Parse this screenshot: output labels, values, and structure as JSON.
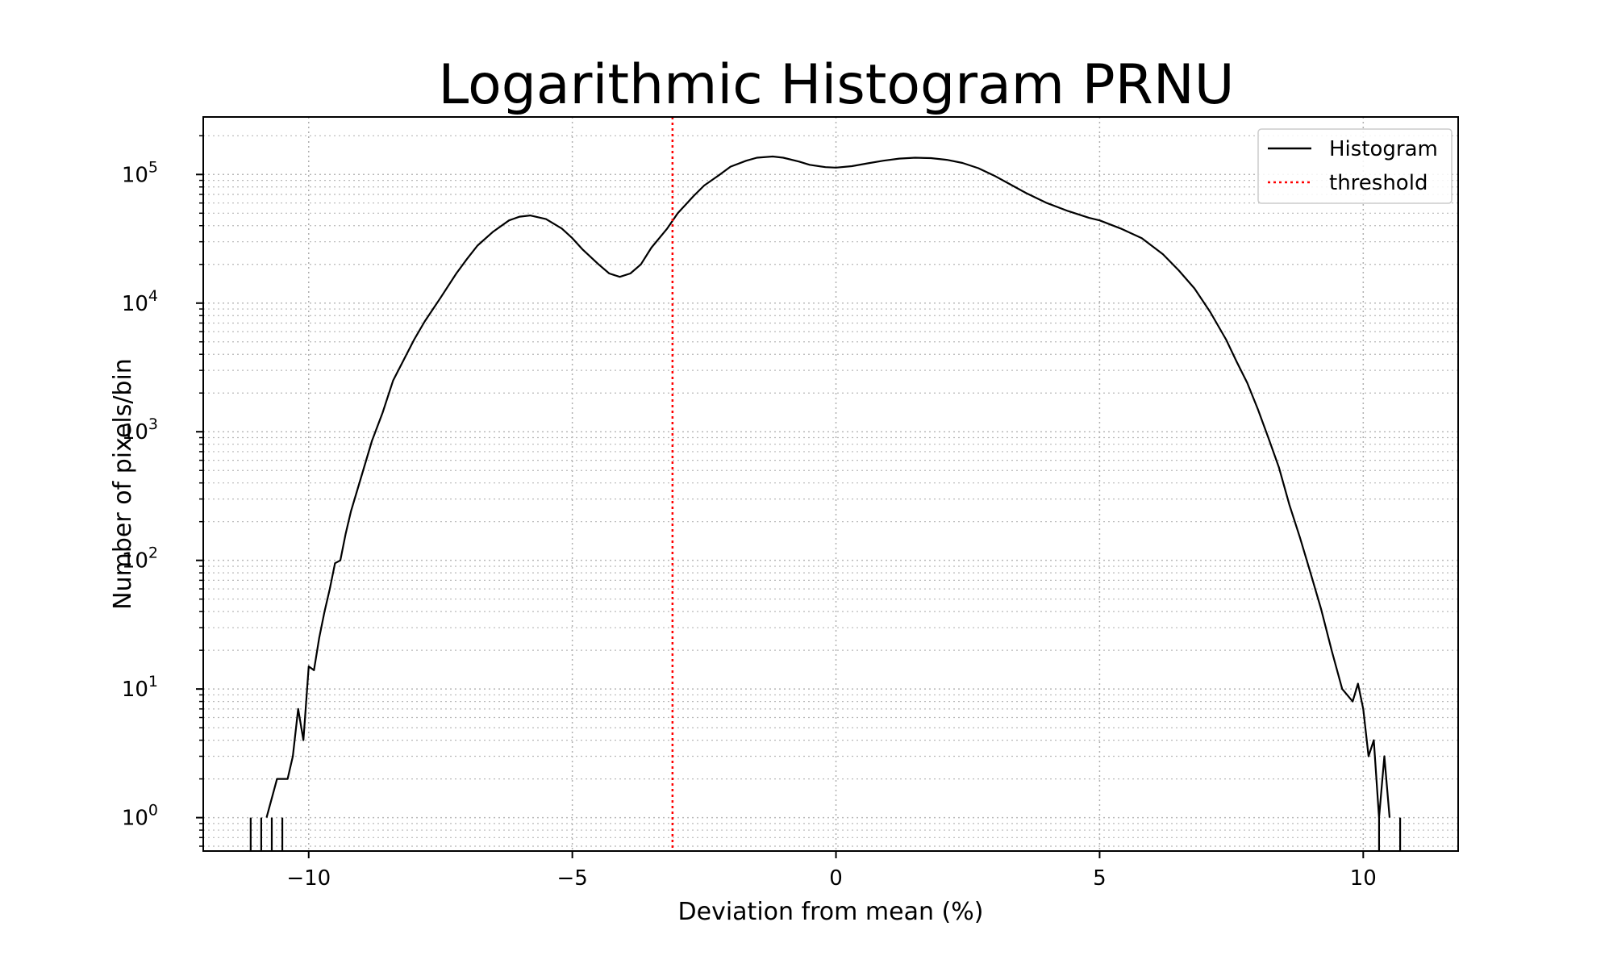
{
  "chart_data": {
    "type": "line",
    "title": "Logarithmic Histogram PRNU",
    "xlabel": "Deviation from mean (%)",
    "ylabel": "Number of pixels/bin",
    "xlim": [
      -12.0,
      11.8
    ],
    "ylim": [
      0.55,
      280000
    ],
    "yscale": "log",
    "grid": true,
    "legend_position": "top-right",
    "x_ticks": [
      -10,
      -5,
      0,
      5,
      10
    ],
    "x_tick_labels": [
      "−10",
      "−5",
      "0",
      "5",
      "10"
    ],
    "y_ticks": [
      1,
      10,
      100,
      1000,
      10000,
      100000
    ],
    "y_tick_labels": [
      {
        "base": "10",
        "exp": "0"
      },
      {
        "base": "10",
        "exp": "1"
      },
      {
        "base": "10",
        "exp": "2"
      },
      {
        "base": "10",
        "exp": "3"
      },
      {
        "base": "10",
        "exp": "4"
      },
      {
        "base": "10",
        "exp": "5"
      }
    ],
    "series": [
      {
        "name": "Histogram",
        "color": "#000000",
        "style": "solid",
        "points": [
          [
            -10.8,
            1
          ],
          [
            -10.6,
            2
          ],
          [
            -10.4,
            2
          ],
          [
            -10.3,
            3
          ],
          [
            -10.2,
            7
          ],
          [
            -10.1,
            4
          ],
          [
            -10.0,
            15
          ],
          [
            -9.9,
            14
          ],
          [
            -9.8,
            25
          ],
          [
            -9.7,
            40
          ],
          [
            -9.6,
            60
          ],
          [
            -9.5,
            95
          ],
          [
            -9.4,
            100
          ],
          [
            -9.3,
            160
          ],
          [
            -9.2,
            240
          ],
          [
            -9.0,
            450
          ],
          [
            -8.8,
            850
          ],
          [
            -8.6,
            1400
          ],
          [
            -8.4,
            2500
          ],
          [
            -8.2,
            3600
          ],
          [
            -8.0,
            5200
          ],
          [
            -7.8,
            7200
          ],
          [
            -7.5,
            11000
          ],
          [
            -7.2,
            17000
          ],
          [
            -7.0,
            22000
          ],
          [
            -6.8,
            28000
          ],
          [
            -6.5,
            36000
          ],
          [
            -6.2,
            44000
          ],
          [
            -6.0,
            47000
          ],
          [
            -5.8,
            48000
          ],
          [
            -5.5,
            45000
          ],
          [
            -5.2,
            38000
          ],
          [
            -5.0,
            32000
          ],
          [
            -4.8,
            26000
          ],
          [
            -4.5,
            20000
          ],
          [
            -4.3,
            17000
          ],
          [
            -4.1,
            16000
          ],
          [
            -3.9,
            17000
          ],
          [
            -3.7,
            20000
          ],
          [
            -3.5,
            27000
          ],
          [
            -3.2,
            38000
          ],
          [
            -3.0,
            50000
          ],
          [
            -2.7,
            68000
          ],
          [
            -2.5,
            82000
          ],
          [
            -2.2,
            100000
          ],
          [
            -2.0,
            115000
          ],
          [
            -1.7,
            128000
          ],
          [
            -1.5,
            135000
          ],
          [
            -1.2,
            138000
          ],
          [
            -1.0,
            135000
          ],
          [
            -0.7,
            126000
          ],
          [
            -0.5,
            119000
          ],
          [
            -0.2,
            114000
          ],
          [
            0.0,
            113000
          ],
          [
            0.3,
            116000
          ],
          [
            0.6,
            122000
          ],
          [
            0.9,
            128000
          ],
          [
            1.2,
            133000
          ],
          [
            1.5,
            135000
          ],
          [
            1.8,
            134000
          ],
          [
            2.1,
            130000
          ],
          [
            2.4,
            123000
          ],
          [
            2.7,
            112000
          ],
          [
            3.0,
            98000
          ],
          [
            3.3,
            84000
          ],
          [
            3.6,
            72000
          ],
          [
            4.0,
            60000
          ],
          [
            4.4,
            52000
          ],
          [
            4.8,
            46000
          ],
          [
            5.0,
            44000
          ],
          [
            5.4,
            38000
          ],
          [
            5.8,
            32000
          ],
          [
            6.2,
            24000
          ],
          [
            6.5,
            18000
          ],
          [
            6.8,
            13000
          ],
          [
            7.1,
            8500
          ],
          [
            7.4,
            5200
          ],
          [
            7.6,
            3500
          ],
          [
            7.8,
            2400
          ],
          [
            8.0,
            1500
          ],
          [
            8.2,
            900
          ],
          [
            8.4,
            530
          ],
          [
            8.6,
            270
          ],
          [
            8.8,
            150
          ],
          [
            9.0,
            80
          ],
          [
            9.2,
            42
          ],
          [
            9.4,
            20
          ],
          [
            9.6,
            10
          ],
          [
            9.8,
            8
          ],
          [
            9.9,
            11
          ],
          [
            10.0,
            7
          ],
          [
            10.1,
            3
          ],
          [
            10.2,
            4
          ],
          [
            10.3,
            1
          ],
          [
            10.4,
            3
          ],
          [
            10.5,
            1
          ]
        ]
      },
      {
        "name": "threshold",
        "color": "#ff0000",
        "style": "dotted",
        "x": -3.1
      }
    ]
  }
}
